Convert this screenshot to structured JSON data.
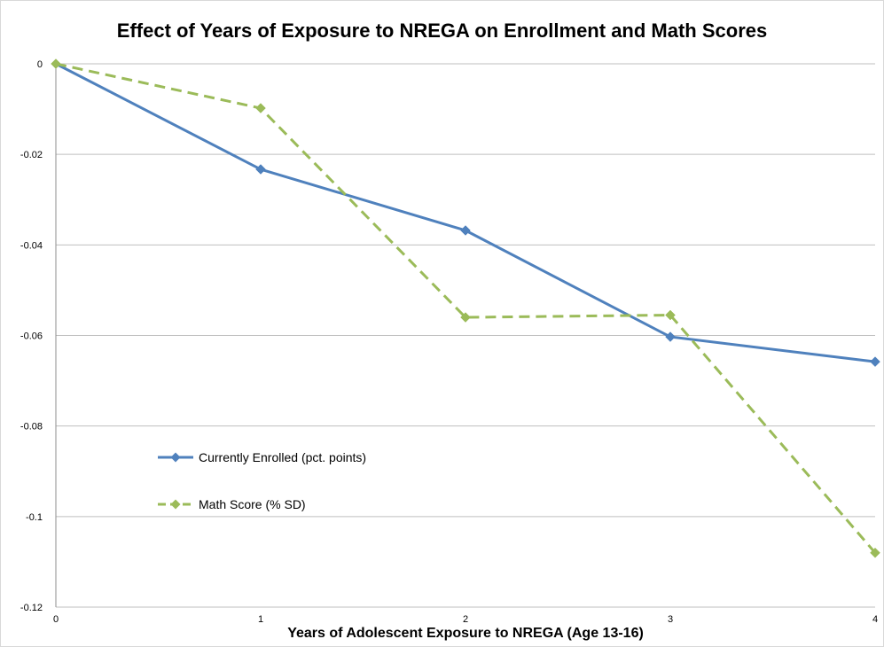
{
  "chart_data": {
    "type": "line",
    "title": "Effect of Years of Exposure to NREGA on Enrollment and Math Scores",
    "xlabel": "Years of Adolescent Exposure to NREGA (Age 13-16)",
    "ylabel": "",
    "x": [
      0,
      1,
      2,
      3,
      4
    ],
    "ylim": [
      -0.12,
      0
    ],
    "yticks": [
      0,
      -0.02,
      -0.04,
      -0.06,
      -0.08,
      -0.1,
      -0.12
    ],
    "ytick_labels": [
      "0",
      "-0.02",
      "-0.04",
      "-0.06",
      "-0.08",
      "-0.1",
      "-0.12"
    ],
    "xtick_labels": [
      "0",
      "1",
      "2",
      "3",
      "4"
    ],
    "grid": "horizontal",
    "legend_position": "inside-left",
    "series": [
      {
        "name": "Currently Enrolled (pct. points)",
        "values": [
          0,
          -0.0233,
          -0.0368,
          -0.0603,
          -0.0658
        ],
        "color": "#4f81bd",
        "style": "solid",
        "marker": "diamond"
      },
      {
        "name": "Math Score (% SD)",
        "values": [
          0,
          -0.0098,
          -0.056,
          -0.0555,
          -0.108
        ],
        "color": "#9bbb59",
        "style": "dashed",
        "marker": "diamond"
      }
    ]
  }
}
